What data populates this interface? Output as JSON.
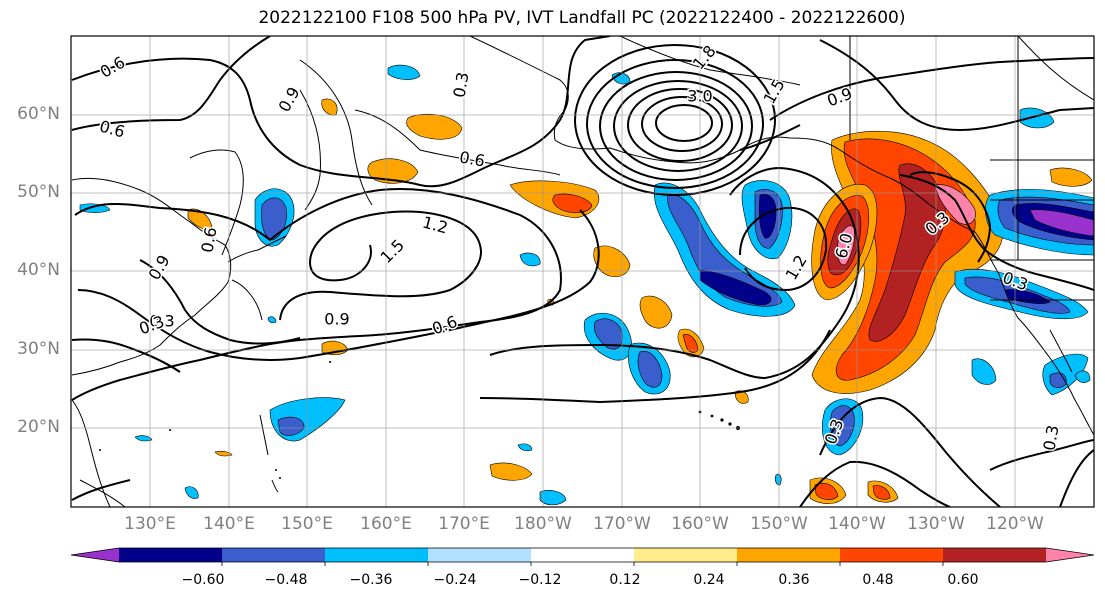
{
  "title": "2022122100 F108 500 hPa PV, IVT Landfall PC (2022122400 - 2022122600)",
  "lat_labels": [
    "60°N",
    "50°N",
    "40°N",
    "30°N",
    "20°N"
  ],
  "lon_labels": [
    "130°E",
    "140°E",
    "150°E",
    "160°E",
    "170°E",
    "180°W",
    "170°W",
    "160°W",
    "150°W",
    "140°W",
    "130°W",
    "120°W"
  ],
  "contour_labels": [
    "0.6",
    "0.6",
    "0.6",
    "0.9",
    "0.3",
    "1.8",
    "3.0",
    "1.5",
    "0.9",
    "0.6",
    "1.2",
    "1.5",
    "0.9",
    "0.6",
    "0.9",
    "0.3",
    "1.2",
    "6.0",
    "0.3",
    "0.3",
    "0.3",
    "0.3",
    "0.3"
  ],
  "colorbar": {
    "ticks": [
      "−0.60",
      "−0.48",
      "−0.36",
      "−0.24",
      "−0.12",
      "0.12",
      "0.24",
      "0.36",
      "0.48",
      "0.60"
    ],
    "colors": [
      "#9932cc",
      "#00008b",
      "#3a5fcd",
      "#00bfff",
      "#b0e2ff",
      "#ffffff",
      "#ffec8b",
      "#ffa500",
      "#ff4500",
      "#b22222",
      "#ff82ab"
    ]
  }
}
